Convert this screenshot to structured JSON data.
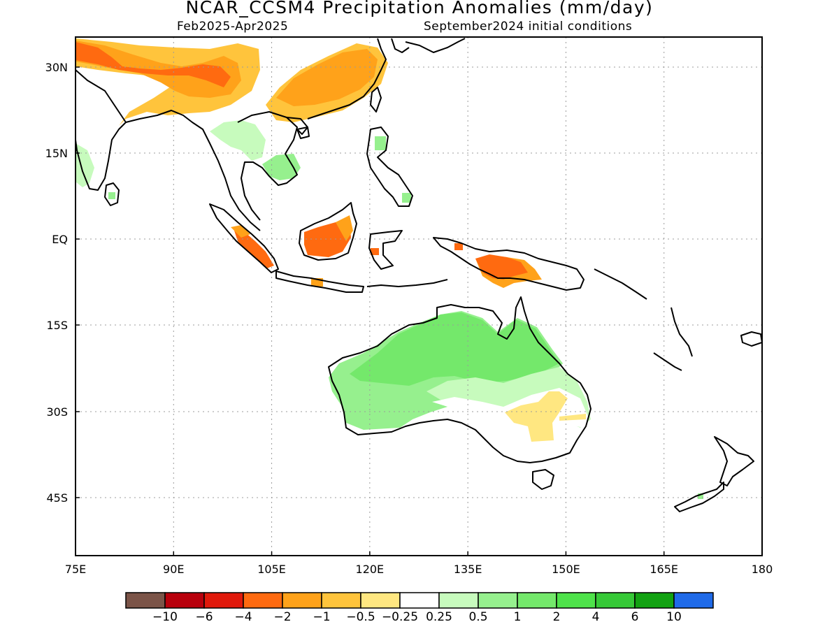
{
  "title": "NCAR_CCSM4 Precipitation Anomalies (mm/day)",
  "season": "Feb2025-Apr2025",
  "init": "September2024 initial conditions",
  "axes": {
    "lat_labels": [
      "30N",
      "15N",
      "EQ",
      "15S",
      "30S",
      "45S"
    ],
    "lon_labels": [
      "75E",
      "90E",
      "105E",
      "120E",
      "135E",
      "150E",
      "165E",
      "180"
    ]
  },
  "colorbar": {
    "labels": [
      "-10",
      "-6",
      "-4",
      "-2",
      "-1",
      "-0.5",
      "-0.25",
      "0.25",
      "0.5",
      "1",
      "2",
      "4",
      "6",
      "10"
    ],
    "colors": [
      "#7b5448",
      "#b8000c",
      "#e0190b",
      "#ff6a10",
      "#ffa21a",
      "#ffc43c",
      "#ffe781",
      "#ffffff",
      "#c7fbbd",
      "#96f08e",
      "#74e86b",
      "#4ee24a",
      "#36c937",
      "#12a212",
      "#1f6ae8"
    ]
  },
  "colors": {
    "frame": "#000000",
    "grid": "#9b9b9b",
    "coast": "#000000"
  }
}
